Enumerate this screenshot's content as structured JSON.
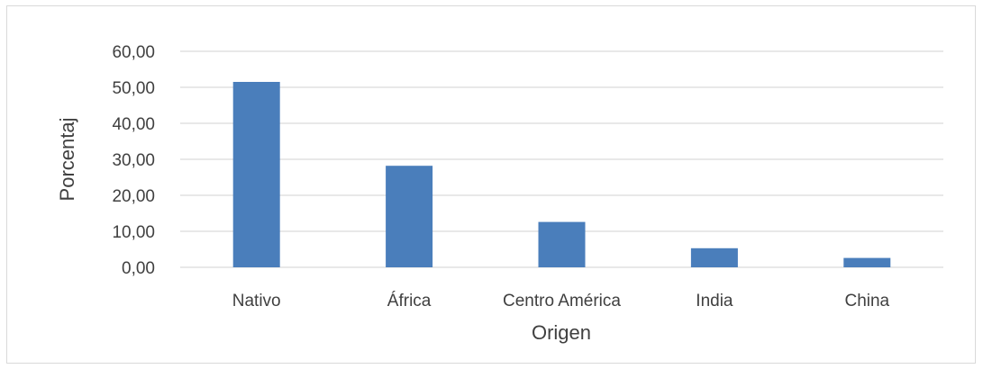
{
  "chart_data": {
    "type": "bar",
    "title": "",
    "xlabel": "Origen",
    "ylabel": "Porcentaj",
    "categories": [
      "Nativo",
      "África",
      "Centro América",
      "India",
      "China"
    ],
    "values": [
      51.5,
      28.2,
      12.6,
      5.3,
      2.6
    ],
    "y_tick_labels": [
      "60,00",
      "50,00",
      "40,00",
      "30,00",
      "20,00",
      "10,00",
      "0,00"
    ],
    "gridlines": 7,
    "grid": true,
    "legend": "none",
    "color": "#4a7ebb"
  }
}
